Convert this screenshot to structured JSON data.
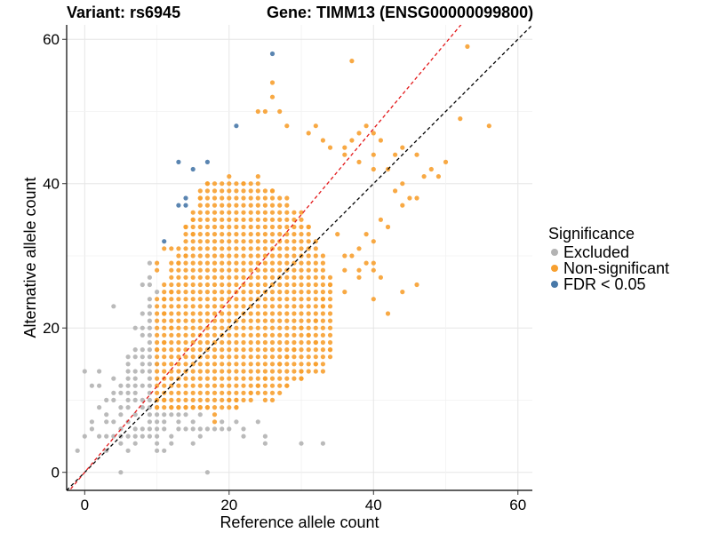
{
  "title_left": "Variant: rs6945",
  "title_right": "Gene: TIMM13 (ENSG00000099800)",
  "chart_data": {
    "type": "scatter",
    "xlabel": "Reference allele count",
    "ylabel": "Alternative allele count",
    "xlim": [
      -2.5,
      62
    ],
    "ylim": [
      -2.5,
      62
    ],
    "x_ticks": [
      0,
      20,
      40,
      60
    ],
    "y_ticks": [
      0,
      20,
      40,
      60
    ],
    "grid": true,
    "legend": {
      "title": "Significance",
      "placement": "right",
      "entries": [
        {
          "key": "excluded",
          "label": "Excluded",
          "color": "#b3b3b3"
        },
        {
          "key": "nonsig",
          "label": "Non-significant",
          "color": "#f7a030"
        },
        {
          "key": "fdr",
          "label": "FDR < 0.05",
          "color": "#4878a8"
        }
      ]
    },
    "reference_lines": [
      {
        "name": "identity",
        "slope": 1,
        "intercept": 0,
        "color": "#000000",
        "style": "dashed"
      },
      {
        "name": "fitted",
        "slope": 1.19,
        "intercept": 0,
        "color": "#e31a1c",
        "style": "dashed"
      }
    ],
    "series": [
      {
        "name": "FDR < 0.05",
        "color": "#4878a8",
        "points": [
          [
            26,
            58
          ],
          [
            21,
            48
          ],
          [
            13,
            43
          ],
          [
            15,
            42
          ],
          [
            17,
            43
          ],
          [
            14,
            38
          ],
          [
            13,
            37
          ],
          [
            14,
            37
          ],
          [
            11,
            32
          ]
        ]
      },
      {
        "name": "Non-significant",
        "color": "#f7a030",
        "grid_region": {
          "x_range": [
            10,
            35
          ],
          "y_range": [
            9,
            41
          ],
          "ratio_min": 0.42,
          "ratio_max": 2.45,
          "radius_norm": 30
        },
        "points": [
          [
            53,
            59
          ],
          [
            37,
            57
          ],
          [
            26,
            54
          ],
          [
            26,
            52
          ],
          [
            27,
            50
          ],
          [
            24,
            50
          ],
          [
            25,
            50
          ],
          [
            28,
            48
          ],
          [
            32,
            48
          ],
          [
            31,
            47
          ],
          [
            33,
            46
          ],
          [
            34,
            45
          ],
          [
            36,
            45
          ],
          [
            37,
            46
          ],
          [
            38,
            47
          ],
          [
            39,
            48
          ],
          [
            44,
            45
          ],
          [
            43,
            44
          ],
          [
            46,
            44
          ],
          [
            52,
            49
          ],
          [
            56,
            48
          ],
          [
            40,
            47
          ],
          [
            41,
            46
          ],
          [
            40,
            44
          ],
          [
            36,
            44
          ],
          [
            38,
            43
          ],
          [
            40,
            42
          ],
          [
            42,
            42
          ],
          [
            47,
            41
          ],
          [
            48,
            42
          ],
          [
            49,
            41
          ],
          [
            50,
            43
          ],
          [
            44,
            40
          ],
          [
            43,
            39
          ],
          [
            46,
            38
          ],
          [
            44,
            37
          ],
          [
            45,
            38
          ],
          [
            41,
            35
          ],
          [
            42,
            34
          ],
          [
            39,
            33
          ],
          [
            40,
            32
          ],
          [
            38,
            31
          ],
          [
            37,
            30
          ],
          [
            39,
            29
          ],
          [
            40,
            29
          ],
          [
            38,
            28
          ],
          [
            40,
            28
          ],
          [
            41,
            27
          ],
          [
            38,
            27
          ],
          [
            44,
            25
          ],
          [
            46,
            26
          ],
          [
            42,
            22
          ],
          [
            40,
            24
          ],
          [
            34,
            17
          ],
          [
            34,
            16
          ],
          [
            32,
            15
          ],
          [
            30,
            14
          ],
          [
            30,
            13
          ],
          [
            28,
            12
          ],
          [
            27,
            11
          ],
          [
            26,
            10
          ],
          [
            25,
            10
          ],
          [
            21,
            10
          ],
          [
            21,
            9
          ],
          [
            20,
            10
          ],
          [
            18,
            7
          ],
          [
            18,
            8
          ],
          [
            17,
            9
          ],
          [
            16,
            9
          ],
          [
            15,
            9
          ],
          [
            14,
            9
          ],
          [
            13,
            9
          ],
          [
            12,
            9
          ],
          [
            11,
            10
          ],
          [
            10,
            9
          ],
          [
            10,
            10
          ],
          [
            36,
            28
          ],
          [
            34,
            26
          ],
          [
            33,
            24
          ],
          [
            33,
            23
          ],
          [
            32,
            21
          ],
          [
            36,
            25
          ],
          [
            36,
            30
          ],
          [
            35,
            33
          ],
          [
            31,
            34
          ],
          [
            30,
            36
          ],
          [
            28,
            38
          ],
          [
            26,
            39
          ],
          [
            24,
            41
          ],
          [
            22,
            40
          ],
          [
            17,
            40
          ],
          [
            16,
            38
          ],
          [
            15,
            35
          ],
          [
            14,
            34
          ],
          [
            15,
            33
          ],
          [
            12,
            31
          ],
          [
            11,
            31
          ],
          [
            10,
            29
          ],
          [
            10,
            28
          ],
          [
            13,
            29
          ],
          [
            14,
            30
          ],
          [
            11,
            24
          ],
          [
            12,
            25
          ],
          [
            11,
            22
          ],
          [
            12,
            20
          ],
          [
            11,
            18
          ],
          [
            10,
            17
          ],
          [
            30,
            20
          ],
          [
            31,
            19
          ],
          [
            32,
            18
          ],
          [
            29,
            17
          ],
          [
            28,
            16
          ],
          [
            27,
            15
          ],
          [
            25,
            13
          ],
          [
            24,
            12
          ],
          [
            23,
            11
          ]
        ]
      },
      {
        "name": "Excluded",
        "color": "#b3b3b3",
        "points": [
          [
            -1,
            3
          ],
          [
            0,
            5
          ],
          [
            1,
            7
          ],
          [
            1,
            6
          ],
          [
            0,
            14
          ],
          [
            1,
            12
          ],
          [
            2,
            14
          ],
          [
            2,
            12
          ],
          [
            3,
            10
          ],
          [
            2,
            9
          ],
          [
            3,
            7
          ],
          [
            3,
            8
          ],
          [
            4,
            10
          ],
          [
            4,
            11
          ],
          [
            4,
            13
          ],
          [
            4,
            23
          ],
          [
            5,
            12
          ],
          [
            5,
            9
          ],
          [
            4,
            7
          ],
          [
            5,
            8
          ],
          [
            5,
            6
          ],
          [
            4,
            5
          ],
          [
            5,
            5
          ],
          [
            5,
            4
          ],
          [
            3,
            3
          ],
          [
            6,
            7
          ],
          [
            6,
            9
          ],
          [
            6,
            10
          ],
          [
            6,
            13
          ],
          [
            7,
            12
          ],
          [
            7,
            14
          ],
          [
            7,
            16
          ],
          [
            7,
            17
          ],
          [
            8,
            15
          ],
          [
            8,
            17
          ],
          [
            8,
            19
          ],
          [
            8,
            20
          ],
          [
            9,
            21
          ],
          [
            9,
            23
          ],
          [
            9,
            24
          ],
          [
            9,
            26
          ],
          [
            9,
            27
          ],
          [
            9,
            29
          ],
          [
            8,
            26
          ],
          [
            7,
            20
          ],
          [
            6,
            11
          ],
          [
            6,
            14
          ],
          [
            6,
            16
          ],
          [
            5,
            0
          ],
          [
            7,
            10
          ],
          [
            8,
            12
          ],
          [
            8,
            14
          ],
          [
            7,
            8
          ],
          [
            8,
            9
          ],
          [
            8,
            10
          ],
          [
            9,
            11
          ],
          [
            9,
            9
          ],
          [
            9,
            8
          ],
          [
            9,
            7
          ],
          [
            10,
            7
          ],
          [
            10,
            6
          ],
          [
            10,
            5
          ],
          [
            10,
            4
          ],
          [
            11,
            6
          ],
          [
            12,
            4
          ],
          [
            12,
            5
          ],
          [
            13,
            6
          ],
          [
            13,
            7
          ],
          [
            14,
            6
          ],
          [
            15,
            6
          ],
          [
            15,
            4
          ],
          [
            15,
            7
          ],
          [
            16,
            5
          ],
          [
            16,
            6
          ],
          [
            17,
            6
          ],
          [
            17,
            0
          ],
          [
            18,
            6
          ],
          [
            19,
            6
          ],
          [
            19,
            7
          ],
          [
            20,
            6
          ],
          [
            21,
            7
          ],
          [
            22,
            5
          ],
          [
            22,
            6
          ],
          [
            24,
            7
          ],
          [
            25,
            5
          ],
          [
            25,
            4
          ],
          [
            30,
            4
          ],
          [
            33,
            4
          ],
          [
            6,
            3
          ],
          [
            7,
            4
          ],
          [
            8,
            5
          ],
          [
            9,
            5
          ],
          [
            10,
            3
          ],
          [
            11,
            3
          ],
          [
            9,
            18
          ],
          [
            9,
            15
          ],
          [
            9,
            13
          ],
          [
            8,
            22
          ],
          [
            7,
            5
          ],
          [
            6,
            5
          ],
          [
            8,
            6
          ],
          [
            9,
            6
          ],
          [
            11,
            7
          ],
          [
            12,
            8
          ],
          [
            13,
            8
          ],
          [
            14,
            8
          ],
          [
            16,
            8
          ],
          [
            3,
            5
          ],
          [
            2,
            5
          ],
          [
            7,
            6
          ],
          [
            10,
            8
          ],
          [
            11,
            8
          ],
          [
            5,
            11
          ],
          [
            6,
            12
          ],
          [
            7,
            11
          ],
          [
            6,
            15
          ],
          [
            8,
            16
          ],
          [
            9,
            17
          ],
          [
            7,
            13
          ],
          [
            9,
            10
          ],
          [
            9,
            12
          ],
          [
            9,
            14
          ],
          [
            9,
            16
          ],
          [
            9,
            19
          ],
          [
            9,
            20
          ],
          [
            9,
            22
          ],
          [
            10,
            25
          ],
          [
            10,
            15
          ]
        ]
      }
    ]
  }
}
